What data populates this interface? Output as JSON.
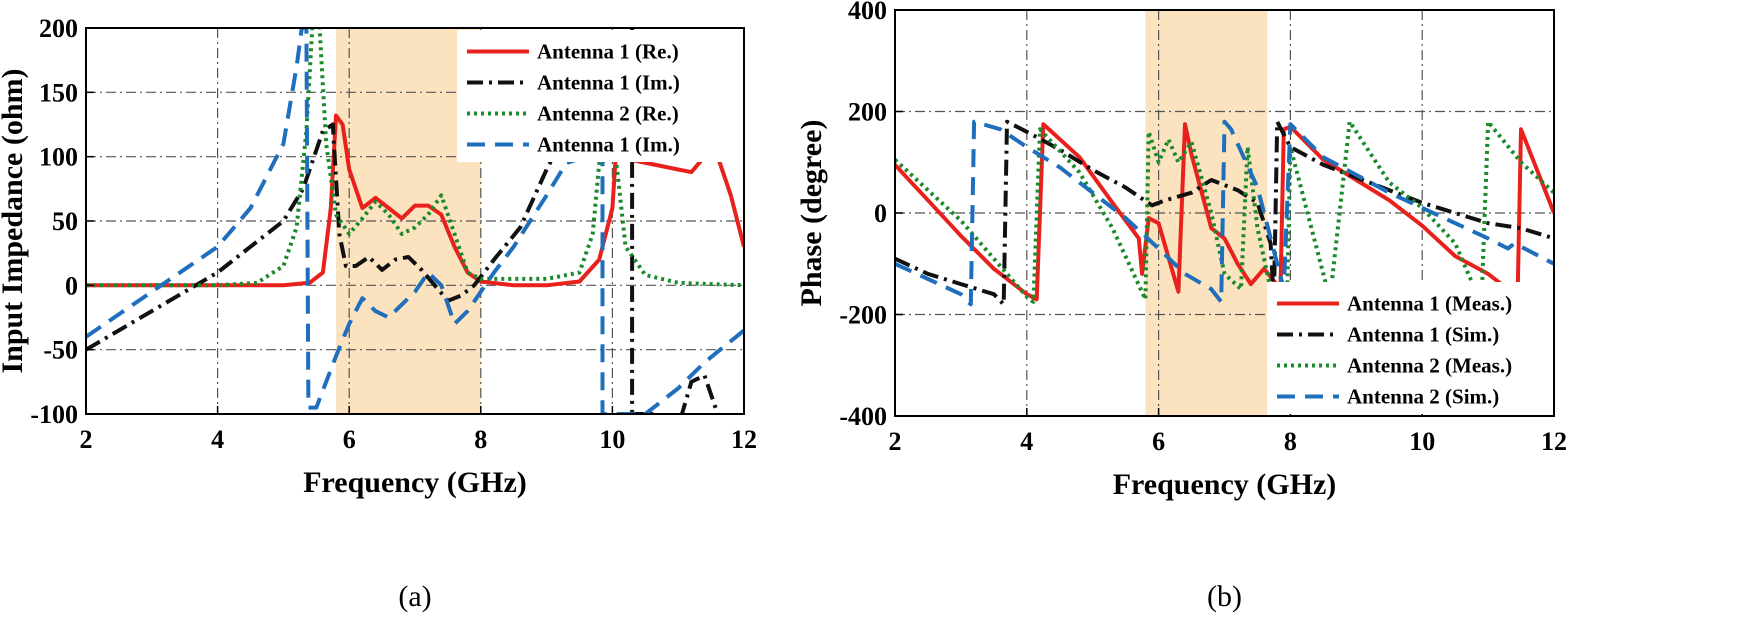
{
  "chart_data": [
    {
      "type": "line",
      "caption": "(a)",
      "xlabel": "Frequency (GHz)",
      "ylabel": "Input Impedance (ohm)",
      "xlim": [
        2,
        12
      ],
      "ylim": [
        -100,
        200
      ],
      "xticks": [
        2,
        4,
        6,
        8,
        10,
        12
      ],
      "yticks": [
        -100,
        -50,
        0,
        50,
        100,
        150,
        200
      ],
      "xtick_labels": [
        "2",
        "4",
        "6",
        "8",
        "10",
        "12"
      ],
      "ytick_labels": [
        "-100",
        "-50",
        "0",
        "50",
        "100",
        "150",
        "200"
      ],
      "grid": true,
      "shaded_band": [
        5.8,
        8.0
      ],
      "legend_position": "top-right",
      "series": [
        {
          "name": "Antenna 1 (Re.)",
          "color": "#e8211c",
          "style": "solid",
          "x": [
            2,
            3,
            4,
            5,
            5.4,
            5.6,
            5.72,
            5.8,
            5.9,
            6.0,
            6.2,
            6.4,
            6.6,
            6.8,
            7.0,
            7.2,
            7.4,
            7.6,
            7.8,
            8.0,
            8.5,
            9.0,
            9.5,
            9.8,
            10.0,
            10.05,
            11.0,
            11.2,
            11.4,
            11.5,
            11.6,
            11.8,
            12.0
          ],
          "y": [
            0,
            0,
            0,
            0,
            2,
            10,
            60,
            132,
            125,
            90,
            60,
            68,
            60,
            52,
            62,
            62,
            55,
            30,
            10,
            3,
            0,
            0,
            3,
            20,
            60,
            100,
            90,
            88,
            100,
            130,
            100,
            70,
            30
          ]
        },
        {
          "name": "Antenna 1 (Im.)",
          "color": "#111111",
          "style": "dashdot",
          "x": [
            2,
            3,
            4,
            4.5,
            5,
            5.3,
            5.6,
            5.75,
            5.85,
            5.95,
            6.1,
            6.3,
            6.5,
            6.7,
            6.9,
            7.1,
            7.3,
            7.5,
            7.7,
            7.9,
            8.2,
            8.6,
            9.0,
            9.1,
            10.3,
            10.3,
            10.3,
            10.6,
            11.0,
            11.2,
            11.4,
            11.6,
            11.8
          ],
          "y": [
            -50,
            -20,
            10,
            30,
            50,
            75,
            120,
            125,
            40,
            15,
            15,
            22,
            12,
            20,
            22,
            12,
            0,
            -12,
            -8,
            0,
            20,
            45,
            90,
            100,
            100,
            200,
            -100,
            -100,
            -110,
            -75,
            -70,
            -100,
            -110
          ]
        },
        {
          "name": "Antenna 2 (Re.)",
          "color": "#1a8a2a",
          "style": "dotted",
          "x": [
            2,
            3,
            4,
            4.6,
            5,
            5.2,
            5.35,
            5.45,
            5.55,
            5.65,
            5.8,
            6.0,
            6.2,
            6.4,
            6.6,
            6.8,
            7.0,
            7.2,
            7.4,
            7.6,
            7.8,
            8.0,
            8.5,
            9.0,
            9.5,
            9.7,
            9.8,
            10.0,
            10.05,
            10.2,
            10.5,
            11,
            12
          ],
          "y": [
            0,
            0,
            0,
            2,
            15,
            45,
            120,
            210,
            200,
            110,
            55,
            40,
            52,
            65,
            55,
            40,
            45,
            55,
            70,
            40,
            10,
            5,
            5,
            5,
            10,
            40,
            95,
            100,
            100,
            30,
            8,
            2,
            0
          ]
        },
        {
          "name": "Antenna 1 (Im.)",
          "color": "#1f6fbd",
          "style": "dashed",
          "x": [
            2,
            3,
            4,
            4.5,
            5,
            5.2,
            5.28,
            5.35,
            5.38,
            5.5,
            5.8,
            6.0,
            6.2,
            6.4,
            6.6,
            6.8,
            7.0,
            7.2,
            7.4,
            7.6,
            7.8,
            8.0,
            8.2,
            8.5,
            9.0,
            9.3,
            9.6,
            9.85,
            9.85,
            9.9,
            10,
            10.5,
            11,
            11.4,
            12
          ],
          "y": [
            -40,
            -5,
            30,
            60,
            110,
            170,
            200,
            200,
            -95,
            -95,
            -55,
            -30,
            -10,
            -20,
            -25,
            -15,
            -5,
            10,
            0,
            -30,
            -20,
            -5,
            10,
            30,
            70,
            95,
            100,
            100,
            -100,
            -100,
            -100,
            -100,
            -80,
            -60,
            -35
          ]
        }
      ]
    },
    {
      "type": "line",
      "caption": "(b)",
      "xlabel": "Frequency (GHz)",
      "ylabel": "Phase (degree)",
      "xlim": [
        2,
        12
      ],
      "ylim": [
        -400,
        400
      ],
      "xticks": [
        2,
        4,
        6,
        8,
        10,
        12
      ],
      "yticks": [
        -400,
        -200,
        0,
        200,
        400
      ],
      "xtick_labels": [
        "2",
        "4",
        "6",
        "8",
        "10",
        "12"
      ],
      "ytick_labels": [
        "-400",
        "-200",
        "0",
        "200",
        "400"
      ],
      "grid": true,
      "shaded_band": [
        5.8,
        7.65
      ],
      "legend_position": "bottom-right",
      "series": [
        {
          "name": "Antenna 1 (Meas.)",
          "color": "#e8211c",
          "style": "solid",
          "x": [
            2,
            2.5,
            3,
            3.5,
            4,
            4.15,
            4.25,
            4.8,
            5.3,
            5.7,
            5.75,
            5.85,
            6.0,
            6.3,
            6.4,
            6.5,
            6.8,
            7.0,
            7.2,
            7.4,
            7.6,
            7.85,
            7.9,
            8.0,
            8.5,
            9,
            9.5,
            10,
            10.5,
            11,
            11.3,
            11.45,
            11.5,
            12
          ],
          "y": [
            95,
            25,
            -45,
            -110,
            -160,
            -170,
            175,
            110,
            20,
            -50,
            -120,
            -10,
            -20,
            -155,
            175,
            115,
            -30,
            -50,
            -100,
            -140,
            -110,
            -150,
            165,
            170,
            105,
            65,
            25,
            -25,
            -85,
            -120,
            -150,
            -145,
            165,
            0
          ]
        },
        {
          "name": "Antenna 1 (Sim.)",
          "color": "#111111",
          "style": "dashdot",
          "x": [
            2,
            2.5,
            3,
            3.5,
            3.65,
            3.7,
            4,
            4.5,
            5,
            5.5,
            5.9,
            6.1,
            6.5,
            6.8,
            7.2,
            7.5,
            7.7,
            7.75,
            7.8,
            8.0,
            8.5,
            9.0,
            9.5,
            10,
            10.5,
            11,
            11.5,
            12
          ],
          "y": [
            -90,
            -120,
            -140,
            -160,
            -180,
            180,
            160,
            125,
            85,
            50,
            15,
            25,
            40,
            65,
            45,
            20,
            -60,
            -175,
            180,
            130,
            95,
            70,
            45,
            20,
            0,
            -20,
            -30,
            -50
          ]
        },
        {
          "name": "Antenna 2 (Meas.)",
          "color": "#1a8a2a",
          "style": "dotted",
          "x": [
            2,
            2.5,
            3,
            3.5,
            4,
            4.1,
            4.2,
            4.8,
            5.3,
            5.8,
            5.85,
            6.0,
            6.15,
            6.3,
            6.5,
            6.8,
            7.0,
            7.25,
            7.35,
            7.5,
            7.7,
            7.95,
            8.0,
            8.6,
            8.9,
            9.0,
            9.5,
            10,
            10.5,
            10.8,
            10.9,
            11.0,
            11.5,
            12
          ],
          "y": [
            105,
            45,
            -15,
            -90,
            -165,
            -175,
            165,
            80,
            -30,
            -170,
            160,
            100,
            145,
            100,
            140,
            0,
            -120,
            -150,
            130,
            -30,
            -150,
            -165,
            130,
            -170,
            180,
            160,
            60,
            10,
            -60,
            -150,
            -175,
            180,
            100,
            40
          ]
        },
        {
          "name": "Antenna 2 (Sim.)",
          "color": "#1f6fbd",
          "style": "dashed",
          "x": [
            2,
            2.5,
            3,
            3.1,
            3.15,
            3.2,
            3.6,
            4.0,
            4.5,
            5,
            5.5,
            6,
            6.4,
            6.8,
            6.95,
            7.0,
            7.1,
            7.5,
            7.9,
            8.0,
            8.5,
            9,
            9.5,
            10,
            10.5,
            11,
            11.3,
            11.4,
            12
          ],
          "y": [
            -100,
            -130,
            -160,
            -175,
            -180,
            180,
            165,
            130,
            90,
            40,
            -10,
            -70,
            -120,
            -150,
            -175,
            180,
            165,
            50,
            -150,
            175,
            110,
            75,
            40,
            10,
            -20,
            -50,
            -70,
            -60,
            -100
          ]
        }
      ]
    }
  ]
}
